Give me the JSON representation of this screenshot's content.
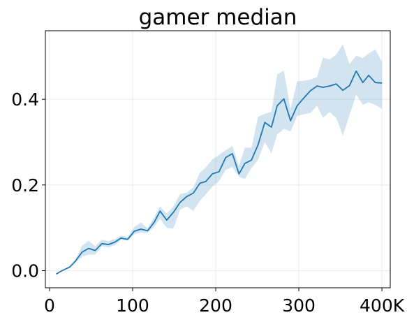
{
  "chart_data": {
    "type": "line",
    "title": "gamer median",
    "xlabel": "",
    "ylabel": "",
    "xlim": [
      -5,
      410
    ],
    "ylim": [
      -0.04,
      0.56
    ],
    "grid": true,
    "x_ticks": [
      {
        "value": 0,
        "label": "0"
      },
      {
        "value": 100,
        "label": "100"
      },
      {
        "value": 200,
        "label": "200"
      },
      {
        "value": 300,
        "label": "300"
      },
      {
        "value": 400,
        "label": "400K"
      }
    ],
    "y_ticks": [
      {
        "value": 0.0,
        "label": "0.0"
      },
      {
        "value": 0.2,
        "label": "0.2"
      },
      {
        "value": 0.4,
        "label": "0.4"
      }
    ],
    "colors": {
      "line": "#1f77b4",
      "band": "#1f77b4"
    },
    "x": [
      8,
      16,
      24,
      31,
      39,
      47,
      55,
      63,
      71,
      79,
      86,
      94,
      102,
      110,
      118,
      126,
      133,
      141,
      149,
      157,
      165,
      173,
      181,
      188,
      196,
      204,
      212,
      220,
      228,
      235,
      243,
      251,
      259,
      267,
      274,
      282,
      290,
      298,
      306,
      314,
      322,
      329,
      337,
      345,
      353,
      361,
      369,
      377,
      384,
      392,
      400
    ],
    "series": [
      {
        "values": [
          -0.008,
          0.001,
          0.008,
          0.022,
          0.043,
          0.052,
          0.047,
          0.063,
          0.061,
          0.067,
          0.076,
          0.073,
          0.092,
          0.097,
          0.093,
          0.113,
          0.139,
          0.118,
          0.136,
          0.159,
          0.173,
          0.181,
          0.204,
          0.208,
          0.226,
          0.231,
          0.264,
          0.273,
          0.226,
          0.25,
          0.258,
          0.294,
          0.346,
          0.335,
          0.385,
          0.401,
          0.35,
          0.385,
          0.403,
          0.42,
          0.431,
          0.428,
          0.431,
          0.436,
          0.421,
          0.432,
          0.466,
          0.439,
          0.456,
          0.439,
          0.438
        ],
        "lower": [
          -0.008,
          0.001,
          0.006,
          0.019,
          0.032,
          0.038,
          0.037,
          0.057,
          0.054,
          0.06,
          0.072,
          0.07,
          0.085,
          0.089,
          0.088,
          0.102,
          0.121,
          0.1,
          0.098,
          0.142,
          0.15,
          0.14,
          0.163,
          0.178,
          0.196,
          0.209,
          0.235,
          0.242,
          0.219,
          0.214,
          0.239,
          0.259,
          0.3,
          0.274,
          0.318,
          0.331,
          0.325,
          0.361,
          0.365,
          0.368,
          0.385,
          0.357,
          0.37,
          0.357,
          0.315,
          0.363,
          0.411,
          0.387,
          0.393,
          0.387,
          0.377
        ],
        "upper": [
          -0.008,
          0.001,
          0.01,
          0.025,
          0.058,
          0.07,
          0.057,
          0.072,
          0.069,
          0.074,
          0.082,
          0.078,
          0.102,
          0.113,
          0.099,
          0.125,
          0.15,
          0.133,
          0.15,
          0.178,
          0.182,
          0.194,
          0.229,
          0.241,
          0.26,
          0.27,
          0.281,
          0.291,
          0.245,
          0.287,
          0.287,
          0.359,
          0.366,
          0.371,
          0.458,
          0.467,
          0.376,
          0.442,
          0.443,
          0.446,
          0.452,
          0.497,
          0.493,
          0.504,
          0.528,
          0.482,
          0.502,
          0.496,
          0.507,
          0.516,
          0.488
        ]
      }
    ]
  }
}
